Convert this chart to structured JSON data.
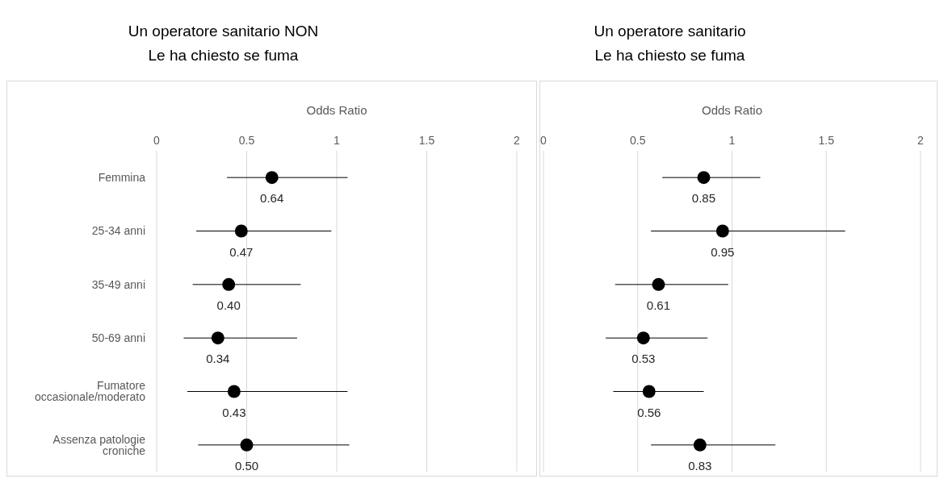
{
  "chart_data": [
    {
      "type": "scatter",
      "title": "Un operatore sanitario NON\nLe ha chiesto se fuma",
      "xlabel": "Odds Ratio",
      "orientation": "horizontal",
      "categories": [
        "Femmina",
        "25-34 anni",
        "35-49 anni",
        "50-69 anni",
        "Fumatore occasionale/moderato",
        "Assenza patologie croniche"
      ],
      "series": [
        {
          "color": "#000000",
          "values": [
            0.64,
            0.47,
            0.4,
            0.34,
            0.43,
            0.5
          ],
          "errors": [
            [
              0.39,
              1.06
            ],
            [
              0.22,
              0.97
            ],
            [
              0.2,
              0.8
            ],
            [
              0.15,
              0.78
            ],
            [
              0.17,
              1.06
            ],
            [
              0.23,
              1.07
            ]
          ],
          "value_labels": [
            "0.64",
            "0.47",
            "0.40",
            "0.34",
            "0.43",
            "0.50"
          ]
        }
      ],
      "xlim": [
        0,
        2
      ],
      "xticks": [
        0,
        0.5,
        1,
        1.5,
        2
      ],
      "grid": "x",
      "marker": "circle",
      "legend": false
    },
    {
      "type": "scatter",
      "title": "Un operatore sanitario\nLe ha chiesto se fuma",
      "xlabel": "Odds Ratio",
      "orientation": "horizontal",
      "categories": [
        null,
        null,
        null,
        null,
        null,
        null
      ],
      "series": [
        {
          "color": "#000000",
          "values": [
            0.85,
            0.95,
            0.61,
            0.53,
            0.56,
            0.83
          ],
          "errors": [
            [
              0.63,
              1.15
            ],
            [
              0.57,
              1.6
            ],
            [
              0.38,
              0.98
            ],
            [
              0.33,
              0.87
            ],
            [
              0.37,
              0.85
            ],
            [
              0.57,
              1.23
            ]
          ],
          "value_labels": [
            "0.85",
            "0.95",
            "0.61",
            "0.53",
            "0.56",
            "0.83"
          ]
        }
      ],
      "xlim": [
        0,
        2
      ],
      "xticks": [
        0,
        0.5,
        1,
        1.5,
        2
      ],
      "grid": "x",
      "marker": "circle",
      "legend": false,
      "tick_labels": "x"
    }
  ]
}
